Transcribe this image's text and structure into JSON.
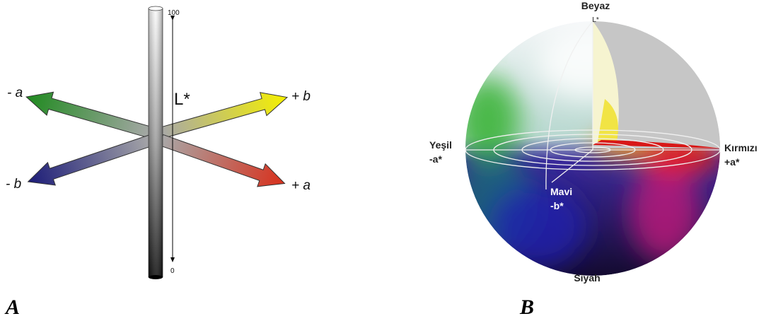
{
  "panel_a": {
    "top_value": 100,
    "axis_label": "L*",
    "bottom_value": 0,
    "minus_a": "- a",
    "plus_b": "+ b",
    "minus_b": "- b",
    "plus_a": "+ a",
    "caption": "A"
  },
  "panel_b": {
    "top": "Beyaz",
    "top_axis": "L*",
    "left": "Yeşil",
    "left_axis": "-a*",
    "right": "Kırmızı",
    "right_axis": "+a*",
    "front": "Mavi",
    "front_axis": "-b*",
    "bottom": "Siyah",
    "caption": "B"
  }
}
